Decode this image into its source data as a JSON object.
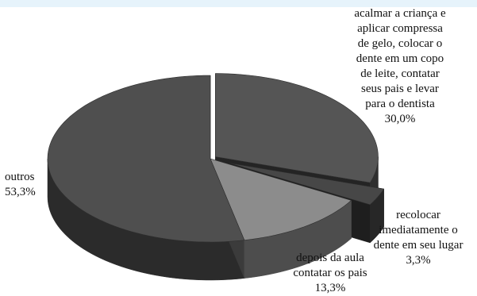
{
  "chart_data": {
    "type": "pie",
    "slices": [
      {
        "label_lines": [
          "acalmar a criança e",
          "aplicar compressa",
          "de gelo, colocar o",
          "dente em um copo",
          "de leite, contatar",
          "seus pais e levar",
          "para o dentista"
        ],
        "value_label": "30,0%",
        "value": 30.0,
        "color": "#555555"
      },
      {
        "label_lines": [
          "recolocar",
          "imediatamente o",
          "dente em seu lugar"
        ],
        "value_label": "3,3%",
        "value": 3.3,
        "color": "#474747"
      },
      {
        "label_lines": [
          "depois da aula",
          "contatar os pais"
        ],
        "value_label": "13,3%",
        "value": 13.3,
        "color": "#8c8c8c"
      },
      {
        "label_lines": [
          "outros"
        ],
        "value_label": "53,3%",
        "value": 53.3,
        "color": "#4f4f4f"
      }
    ]
  }
}
